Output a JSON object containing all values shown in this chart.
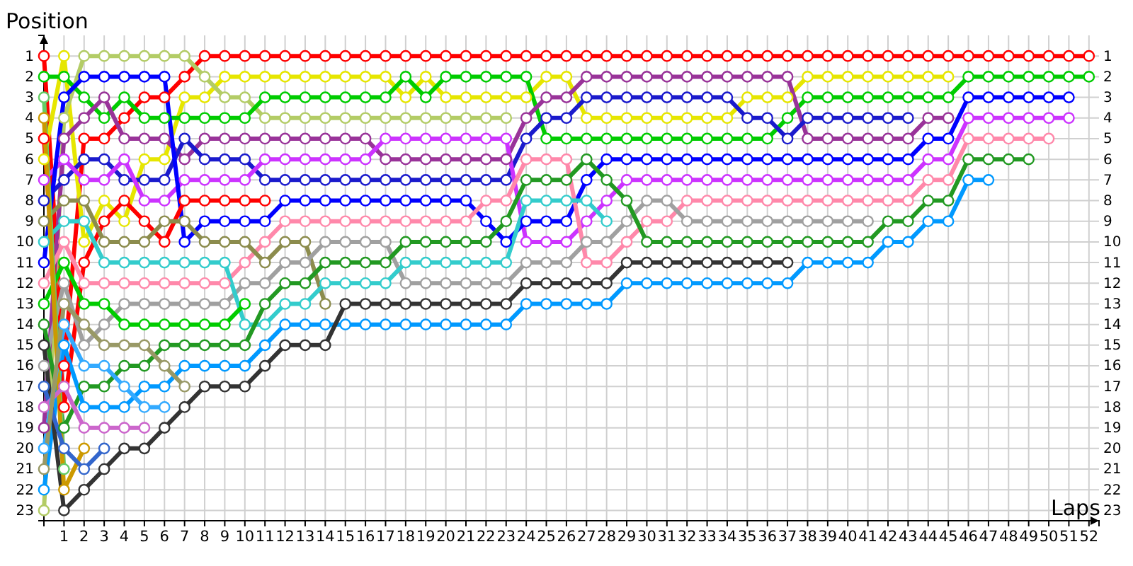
{
  "chart_data": {
    "type": "line",
    "xlabel": "Laps",
    "ylabel": "Position",
    "x": [
      0,
      1,
      2,
      3,
      4,
      5,
      6,
      7,
      8,
      9,
      10,
      11,
      12,
      13,
      14,
      15,
      16,
      17,
      18,
      19,
      20,
      21,
      22,
      23,
      24,
      25,
      26,
      27,
      28,
      29,
      30,
      31,
      32,
      33,
      34,
      35,
      36,
      37,
      38,
      39,
      40,
      41,
      42,
      43,
      44,
      45,
      46,
      47,
      48,
      49,
      50,
      51,
      52
    ],
    "xlim": [
      0,
      52.5
    ],
    "xticks": [
      1,
      2,
      3,
      4,
      5,
      6,
      7,
      8,
      9,
      10,
      11,
      12,
      13,
      14,
      15,
      16,
      17,
      18,
      19,
      20,
      21,
      22,
      23,
      24,
      25,
      26,
      27,
      28,
      29,
      30,
      31,
      32,
      33,
      34,
      35,
      36,
      37,
      38,
      39,
      40,
      41,
      42,
      43,
      44,
      45,
      46,
      47,
      48,
      49,
      50,
      51,
      52
    ],
    "ylim": [
      23.5,
      0
    ],
    "yticks": [
      1,
      2,
      3,
      4,
      5,
      6,
      7,
      8,
      9,
      10,
      11,
      12,
      13,
      14,
      15,
      16,
      17,
      18,
      19,
      20,
      21,
      22,
      23
    ],
    "y2lim": [
      23.5,
      0
    ],
    "y2ticks": [
      1,
      2,
      3,
      4,
      5,
      6,
      7,
      8,
      9,
      10,
      11,
      12,
      13,
      14,
      15,
      16,
      17,
      18,
      19,
      20,
      21,
      22,
      23
    ],
    "grid": true,
    "marker": "circle",
    "line_style": "solid",
    "series": [
      {
        "color": "#ff0000",
        "values": [
          1,
          16,
          5,
          5,
          4,
          3,
          3,
          2,
          1,
          1,
          1,
          1,
          1,
          1,
          1,
          1,
          1,
          1,
          1,
          1,
          1,
          1,
          1,
          1,
          1,
          1,
          1,
          1,
          1,
          1,
          1,
          1,
          1,
          1,
          1,
          1,
          1,
          1,
          1,
          1,
          1,
          1,
          1,
          1,
          1,
          1,
          1,
          1,
          1,
          1,
          1,
          1,
          1
        ]
      },
      {
        "color": "#e6e600",
        "values": [
          6,
          1,
          10,
          8,
          9,
          6,
          6,
          3,
          3,
          2,
          2,
          2,
          2,
          2,
          2,
          2,
          2,
          2,
          3,
          2,
          3,
          3,
          3,
          3,
          3,
          2,
          2,
          4,
          4,
          4,
          4,
          4,
          4,
          4,
          4,
          3,
          3,
          3,
          2,
          2,
          2,
          2,
          2,
          2,
          2,
          2,
          null,
          null,
          null,
          null,
          null,
          null,
          null
        ]
      },
      {
        "color": "#b3cc66",
        "values": [
          23,
          4,
          1,
          1,
          1,
          1,
          1,
          1,
          2,
          3,
          3,
          4,
          4,
          4,
          4,
          4,
          4,
          4,
          4,
          4,
          4,
          4,
          4,
          4,
          null,
          null,
          null,
          null,
          null,
          null,
          null,
          null,
          null,
          null,
          null,
          null,
          null,
          null,
          null,
          null,
          null,
          null,
          null,
          null,
          null,
          null,
          null,
          null,
          null,
          null,
          null,
          null,
          null
        ]
      },
      {
        "color": "#00cc00",
        "values": [
          2,
          2,
          3,
          4,
          3,
          4,
          4,
          4,
          4,
          4,
          4,
          3,
          3,
          3,
          3,
          3,
          3,
          3,
          2,
          3,
          2,
          2,
          2,
          2,
          2,
          5,
          5,
          5,
          5,
          5,
          5,
          5,
          5,
          5,
          5,
          5,
          5,
          4,
          3,
          3,
          3,
          3,
          3,
          3,
          3,
          3,
          2,
          2,
          2,
          2,
          2,
          2,
          2
        ]
      },
      {
        "color": "#993399",
        "values": [
          19,
          5,
          4,
          3,
          5,
          5,
          5,
          6,
          5,
          5,
          5,
          5,
          5,
          5,
          5,
          5,
          5,
          6,
          6,
          6,
          6,
          6,
          6,
          6,
          4,
          3,
          3,
          2,
          2,
          2,
          2,
          2,
          2,
          2,
          2,
          2,
          2,
          2,
          5,
          5,
          5,
          5,
          5,
          5,
          4,
          4,
          null,
          null,
          null,
          null,
          null,
          null,
          null
        ]
      },
      {
        "color": "#1a1acc",
        "values": [
          8,
          7,
          6,
          6,
          7,
          7,
          7,
          5,
          6,
          6,
          6,
          7,
          7,
          7,
          7,
          7,
          7,
          7,
          7,
          7,
          7,
          7,
          7,
          7,
          5,
          4,
          4,
          3,
          3,
          3,
          3,
          3,
          3,
          3,
          3,
          4,
          4,
          5,
          4,
          4,
          4,
          4,
          4,
          4,
          null,
          null,
          null,
          null,
          null,
          null,
          null,
          null,
          null
        ]
      },
      {
        "color": "#cc33ff",
        "values": [
          7,
          6,
          7,
          7,
          6,
          8,
          8,
          7,
          7,
          7,
          7,
          6,
          6,
          6,
          6,
          6,
          6,
          5,
          5,
          5,
          5,
          5,
          5,
          5,
          10,
          10,
          10,
          9,
          8,
          7,
          7,
          7,
          7,
          7,
          7,
          7,
          7,
          7,
          7,
          7,
          7,
          7,
          7,
          7,
          6,
          6,
          4,
          4,
          4,
          4,
          4,
          4,
          null
        ]
      },
      {
        "color": "#0000ff",
        "values": [
          11,
          3,
          2,
          2,
          2,
          2,
          2,
          10,
          9,
          9,
          9,
          9,
          8,
          8,
          8,
          8,
          8,
          8,
          8,
          8,
          8,
          8,
          9,
          10,
          9,
          9,
          9,
          7,
          6,
          6,
          6,
          6,
          6,
          6,
          6,
          6,
          6,
          6,
          6,
          6,
          6,
          6,
          6,
          6,
          5,
          5,
          3,
          3,
          3,
          3,
          3,
          3,
          null
        ]
      },
      {
        "color": "#ff0000",
        "values": [
          5,
          18,
          11,
          9,
          8,
          9,
          10,
          8,
          8,
          8,
          8,
          8,
          null,
          null,
          null,
          null,
          null,
          null,
          null,
          null,
          null,
          null,
          null,
          null,
          null,
          null,
          null,
          null,
          null,
          null,
          null,
          null,
          null,
          null,
          null,
          null,
          null,
          null,
          null,
          null,
          null,
          null,
          null,
          null,
          null,
          null,
          null,
          null,
          null,
          null,
          null,
          null,
          null
        ]
      },
      {
        "color": "#ff88aa",
        "values": [
          12,
          10,
          12,
          12,
          12,
          12,
          12,
          12,
          12,
          12,
          11,
          10,
          9,
          9,
          9,
          9,
          9,
          9,
          9,
          9,
          9,
          9,
          8,
          8,
          6,
          6,
          6,
          11,
          11,
          10,
          9,
          9,
          8,
          8,
          8,
          8,
          8,
          8,
          8,
          8,
          8,
          8,
          8,
          8,
          7,
          7,
          5,
          5,
          5,
          5,
          5,
          null,
          null
        ]
      },
      {
        "color": "#8c8c4d",
        "values": [
          9,
          8,
          8,
          10,
          10,
          10,
          9,
          9,
          10,
          10,
          10,
          11,
          10,
          10,
          13,
          null,
          null,
          null,
          null,
          null,
          null,
          null,
          null,
          null,
          null,
          null,
          null,
          null,
          null,
          null,
          null,
          null,
          null,
          null,
          null,
          null,
          null,
          null,
          null,
          null,
          null,
          null,
          null,
          null,
          null,
          null,
          null,
          null,
          null,
          null,
          null,
          null,
          null
        ]
      },
      {
        "color": "#a0a0a0",
        "values": [
          16,
          12,
          15,
          14,
          13,
          13,
          13,
          13,
          13,
          13,
          12,
          12,
          11,
          11,
          10,
          10,
          10,
          10,
          12,
          12,
          12,
          12,
          12,
          12,
          11,
          11,
          11,
          10,
          10,
          9,
          8,
          8,
          9,
          9,
          9,
          9,
          9,
          9,
          9,
          9,
          9,
          9,
          null,
          null,
          null,
          null,
          null,
          null,
          null,
          null,
          null,
          null,
          null
        ]
      },
      {
        "color": "#33cccc",
        "values": [
          10,
          9,
          9,
          11,
          11,
          11,
          11,
          11,
          11,
          11,
          14,
          14,
          13,
          13,
          12,
          12,
          12,
          12,
          11,
          11,
          11,
          11,
          11,
          11,
          8,
          8,
          8,
          8,
          9,
          null,
          null,
          null,
          null,
          null,
          null,
          null,
          null,
          null,
          null,
          null,
          null,
          null,
          null,
          null,
          null,
          null,
          null,
          null,
          null,
          null,
          null,
          null,
          null
        ]
      },
      {
        "color": "#229922",
        "values": [
          14,
          19,
          17,
          17,
          16,
          16,
          15,
          15,
          15,
          15,
          15,
          13,
          12,
          12,
          11,
          11,
          11,
          11,
          10,
          10,
          10,
          10,
          10,
          9,
          7,
          7,
          7,
          6,
          7,
          8,
          10,
          10,
          10,
          10,
          10,
          10,
          10,
          10,
          10,
          10,
          10,
          10,
          9,
          9,
          8,
          8,
          6,
          6,
          6,
          6,
          null,
          null,
          null
        ]
      },
      {
        "color": "#00cc00",
        "values": [
          13,
          11,
          13,
          13,
          14,
          14,
          14,
          14,
          14,
          14,
          13,
          null,
          null,
          null,
          null,
          null,
          null,
          null,
          null,
          null,
          null,
          null,
          null,
          null,
          null,
          null,
          null,
          null,
          null,
          null,
          null,
          null,
          null,
          null,
          null,
          null,
          null,
          null,
          null,
          null,
          null,
          null,
          null,
          null,
          null,
          null,
          null,
          null,
          null,
          null,
          null,
          null,
          null
        ]
      },
      {
        "color": "#0099ff",
        "values": [
          22,
          15,
          18,
          18,
          18,
          17,
          17,
          16,
          16,
          16,
          16,
          15,
          14,
          14,
          14,
          14,
          14,
          14,
          14,
          14,
          14,
          14,
          14,
          14,
          13,
          13,
          13,
          13,
          13,
          12,
          12,
          12,
          12,
          12,
          12,
          12,
          12,
          12,
          11,
          11,
          11,
          11,
          10,
          10,
          9,
          9,
          7,
          7,
          null,
          null,
          null,
          null,
          null
        ]
      },
      {
        "color": "#333333",
        "values": [
          15,
          23,
          22,
          21,
          20,
          20,
          19,
          18,
          17,
          17,
          17,
          16,
          15,
          15,
          15,
          13,
          13,
          13,
          13,
          13,
          13,
          13,
          13,
          13,
          12,
          12,
          12,
          12,
          12,
          11,
          11,
          11,
          11,
          11,
          11,
          11,
          11,
          11,
          null,
          null,
          null,
          null,
          null,
          null,
          null,
          null,
          null,
          null,
          null,
          null,
          null,
          null,
          null
        ]
      },
      {
        "color": "#66cc66",
        "values": [
          3,
          21,
          null,
          null,
          null,
          null,
          null,
          null,
          null,
          null,
          null,
          null,
          null,
          null,
          null,
          null,
          null,
          null,
          null,
          null,
          null,
          null,
          null,
          null,
          null,
          null,
          null,
          null,
          null,
          null,
          null,
          null,
          null,
          null,
          null,
          null,
          null,
          null,
          null,
          null,
          null,
          null,
          null,
          null,
          null,
          null,
          null,
          null,
          null,
          null,
          null,
          null,
          null
        ]
      },
      {
        "color": "#cc9900",
        "values": [
          4,
          22,
          20,
          null,
          null,
          null,
          null,
          null,
          null,
          null,
          null,
          null,
          null,
          null,
          null,
          null,
          null,
          null,
          null,
          null,
          null,
          null,
          null,
          null,
          null,
          null,
          null,
          null,
          null,
          null,
          null,
          null,
          null,
          null,
          null,
          null,
          null,
          null,
          null,
          null,
          null,
          null,
          null,
          null,
          null,
          null,
          null,
          null,
          null,
          null,
          null,
          null,
          null
        ]
      },
      {
        "color": "#3366cc",
        "values": [
          17,
          20,
          21,
          20,
          null,
          null,
          null,
          null,
          null,
          null,
          null,
          null,
          null,
          null,
          null,
          null,
          null,
          null,
          null,
          null,
          null,
          null,
          null,
          null,
          null,
          null,
          null,
          null,
          null,
          null,
          null,
          null,
          null,
          null,
          null,
          null,
          null,
          null,
          null,
          null,
          null,
          null,
          null,
          null,
          null,
          null,
          null,
          null,
          null,
          null,
          null,
          null,
          null
        ]
      },
      {
        "color": "#cc66cc",
        "values": [
          18,
          17,
          19,
          19,
          19,
          19,
          null,
          null,
          null,
          null,
          null,
          null,
          null,
          null,
          null,
          null,
          null,
          null,
          null,
          null,
          null,
          null,
          null,
          null,
          null,
          null,
          null,
          null,
          null,
          null,
          null,
          null,
          null,
          null,
          null,
          null,
          null,
          null,
          null,
          null,
          null,
          null,
          null,
          null,
          null,
          null,
          null,
          null,
          null,
          null,
          null,
          null,
          null
        ]
      },
      {
        "color": "#33aaff",
        "values": [
          20,
          14,
          16,
          16,
          17,
          18,
          18,
          null,
          null,
          null,
          null,
          null,
          null,
          null,
          null,
          null,
          null,
          null,
          null,
          null,
          null,
          null,
          null,
          null,
          null,
          null,
          null,
          null,
          null,
          null,
          null,
          null,
          null,
          null,
          null,
          null,
          null,
          null,
          null,
          null,
          null,
          null,
          null,
          null,
          null,
          null,
          null,
          null,
          null,
          null,
          null,
          null,
          null
        ]
      },
      {
        "color": "#999966",
        "values": [
          21,
          13,
          14,
          15,
          15,
          15,
          16,
          17,
          null,
          null,
          null,
          null,
          null,
          null,
          null,
          null,
          null,
          null,
          null,
          null,
          null,
          null,
          null,
          null,
          null,
          null,
          null,
          null,
          null,
          null,
          null,
          null,
          null,
          null,
          null,
          null,
          null,
          null,
          null,
          null,
          null,
          null,
          null,
          null,
          null,
          null,
          null,
          null,
          null,
          null,
          null,
          null,
          null
        ]
      }
    ]
  }
}
